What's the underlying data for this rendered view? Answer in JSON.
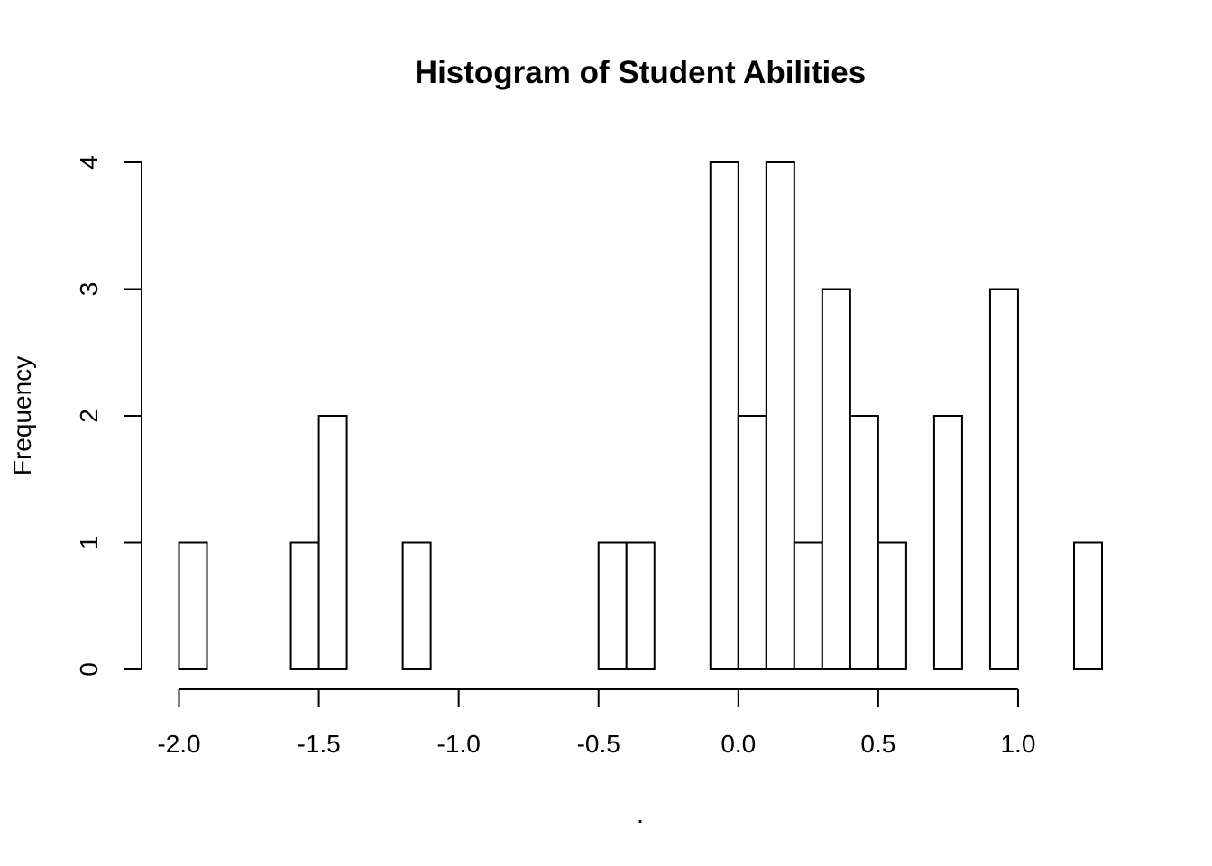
{
  "chart_data": {
    "type": "bar",
    "title": "Histogram of Student Abilities",
    "xlabel": ".",
    "ylabel": "Frequency",
    "bin_width": 0.1,
    "bins": [
      {
        "start": -2.0,
        "end": -1.9,
        "count": 1
      },
      {
        "start": -1.9,
        "end": -1.8,
        "count": 0
      },
      {
        "start": -1.8,
        "end": -1.7,
        "count": 0
      },
      {
        "start": -1.7,
        "end": -1.6,
        "count": 0
      },
      {
        "start": -1.6,
        "end": -1.5,
        "count": 1
      },
      {
        "start": -1.5,
        "end": -1.4,
        "count": 2
      },
      {
        "start": -1.4,
        "end": -1.3,
        "count": 0
      },
      {
        "start": -1.3,
        "end": -1.2,
        "count": 0
      },
      {
        "start": -1.2,
        "end": -1.1,
        "count": 1
      },
      {
        "start": -1.1,
        "end": -1.0,
        "count": 0
      },
      {
        "start": -1.0,
        "end": -0.9,
        "count": 0
      },
      {
        "start": -0.9,
        "end": -0.8,
        "count": 0
      },
      {
        "start": -0.8,
        "end": -0.7,
        "count": 0
      },
      {
        "start": -0.7,
        "end": -0.6,
        "count": 0
      },
      {
        "start": -0.6,
        "end": -0.5,
        "count": 0
      },
      {
        "start": -0.5,
        "end": -0.4,
        "count": 1
      },
      {
        "start": -0.4,
        "end": -0.3,
        "count": 1
      },
      {
        "start": -0.3,
        "end": -0.2,
        "count": 0
      },
      {
        "start": -0.2,
        "end": -0.1,
        "count": 0
      },
      {
        "start": -0.1,
        "end": 0.0,
        "count": 4
      },
      {
        "start": 0.0,
        "end": 0.1,
        "count": 2
      },
      {
        "start": 0.1,
        "end": 0.2,
        "count": 4
      },
      {
        "start": 0.2,
        "end": 0.3,
        "count": 1
      },
      {
        "start": 0.3,
        "end": 0.4,
        "count": 3
      },
      {
        "start": 0.4,
        "end": 0.5,
        "count": 2
      },
      {
        "start": 0.5,
        "end": 0.6,
        "count": 1
      },
      {
        "start": 0.6,
        "end": 0.7,
        "count": 0
      },
      {
        "start": 0.7,
        "end": 0.8,
        "count": 2
      },
      {
        "start": 0.8,
        "end": 0.9,
        "count": 0
      },
      {
        "start": 0.9,
        "end": 1.0,
        "count": 3
      },
      {
        "start": 1.0,
        "end": 1.1,
        "count": 0
      },
      {
        "start": 1.1,
        "end": 1.2,
        "count": 0
      },
      {
        "start": 1.2,
        "end": 1.3,
        "count": 1
      }
    ],
    "xlim": [
      -2.0,
      1.3
    ],
    "ylim": [
      0,
      4
    ],
    "x_ticks": [
      -2.0,
      -1.5,
      -1.0,
      -0.5,
      0.0,
      0.5,
      1.0
    ],
    "x_tick_labels": [
      "-2.0",
      "-1.5",
      "-1.0",
      "-0.5",
      "0.0",
      "0.5",
      "1.0"
    ],
    "y_ticks": [
      0,
      1,
      2,
      3,
      4
    ],
    "y_tick_labels": [
      "0",
      "1",
      "2",
      "3",
      "4"
    ],
    "grid": false,
    "bar_fill": "#ffffff",
    "bar_stroke": "#000000"
  }
}
